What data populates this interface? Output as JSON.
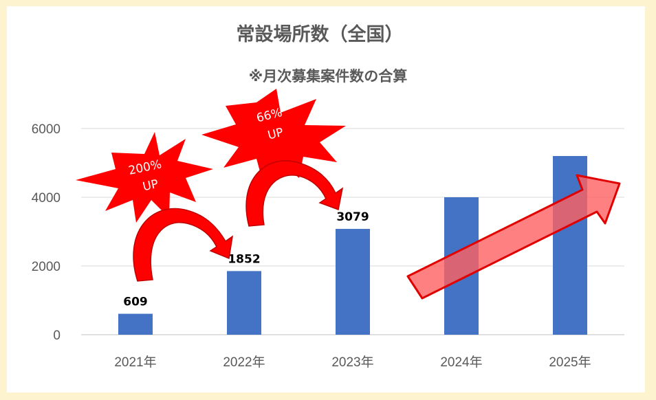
{
  "chart_data": {
    "type": "bar",
    "title": "常設場所数（全国）",
    "subtitle": "※月次募集案件数の合算",
    "categories": [
      "2021年",
      "2022年",
      "2023年",
      "2024年",
      "2025年"
    ],
    "series": [
      {
        "values": [
          609,
          1852,
          3079,
          4000,
          5200
        ]
      }
    ],
    "data_labels": [
      "609",
      "1852",
      "3079",
      "",
      ""
    ],
    "ylim": [
      0,
      6000
    ],
    "yticks": [
      "0",
      "2000",
      "4000",
      "6000"
    ],
    "grid": true,
    "bar_color": "#4472c4",
    "annotations": [
      {
        "text_line1": "200%",
        "text_line2": "UP",
        "from": "2021年",
        "to": "2022年"
      },
      {
        "text_line1": "66%",
        "text_line2": "UP",
        "from": "2022年",
        "to": "2023年"
      },
      {
        "trend_arrow": "upward",
        "from": "2024年",
        "to": "2025年"
      }
    ],
    "annotation_color": "#ff0000"
  }
}
